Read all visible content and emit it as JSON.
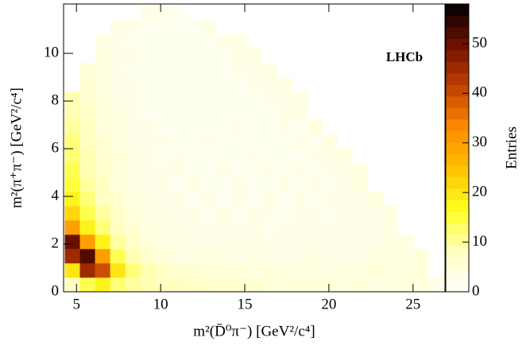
{
  "chart_data": {
    "type": "heatmap",
    "xlabel": "m²(D̄⁰π⁻) [GeV²/c⁴]",
    "ylabel": "m²(π⁺π⁻) [GeV²/c⁴]",
    "colorbar_label": "Entries",
    "annotation": "LHCb",
    "xlim": [
      4.23,
      26.9
    ],
    "ylim": [
      0,
      12.07
    ],
    "zlim": [
      0,
      58
    ],
    "xticks": [
      5,
      10,
      15,
      20,
      25
    ],
    "yticks": [
      0,
      2,
      4,
      6,
      8,
      10
    ],
    "zticks": [
      0,
      10,
      20,
      30,
      40,
      50
    ],
    "x_bins": [
      4.3,
      5.2,
      6.1,
      7.0,
      7.9,
      8.8,
      9.7,
      10.6,
      11.5,
      12.4,
      13.3,
      14.2,
      15.1,
      16.0,
      16.9,
      17.8,
      18.7,
      19.6,
      20.5,
      21.4,
      22.3,
      23.2,
      24.1,
      25.0,
      25.9,
      26.8
    ],
    "y_bins": [
      0,
      0.6,
      1.2,
      1.8,
      2.4,
      3.0,
      3.6,
      4.2,
      4.8,
      5.4,
      6.0,
      6.6,
      7.2,
      7.8,
      8.4,
      9.0,
      9.6,
      10.2,
      10.8,
      11.4,
      12.0
    ],
    "colormap": [
      "#ffffff",
      "#ffffc0",
      "#ffff20",
      "#ffc000",
      "#ff8a00",
      "#c04000",
      "#701000",
      "#000000"
    ],
    "values": [
      [
        8,
        14,
        18,
        12,
        10,
        9,
        8,
        8,
        7,
        7,
        6,
        6,
        6,
        5,
        5,
        5,
        5,
        5,
        4,
        5,
        4,
        4,
        5,
        4,
        3
      ],
      [
        20,
        45,
        40,
        20,
        12,
        9,
        7,
        6,
        6,
        5,
        5,
        5,
        4,
        5,
        4,
        4,
        4,
        4,
        4,
        4,
        5,
        4,
        4,
        5,
        null
      ],
      [
        45,
        52,
        30,
        14,
        9,
        6,
        5,
        4,
        4,
        4,
        4,
        3,
        4,
        3,
        3,
        3,
        4,
        3,
        3,
        3,
        4,
        4,
        4,
        5,
        null
      ],
      [
        50,
        30,
        18,
        10,
        7,
        5,
        4,
        4,
        3,
        3,
        3,
        3,
        3,
        3,
        3,
        3,
        3,
        3,
        3,
        3,
        3,
        4,
        4,
        null,
        null
      ],
      [
        30,
        18,
        12,
        8,
        6,
        4,
        4,
        3,
        3,
        3,
        3,
        3,
        3,
        2,
        3,
        3,
        3,
        3,
        3,
        3,
        3,
        4,
        null,
        null,
        null
      ],
      [
        22,
        14,
        10,
        7,
        5,
        4,
        3,
        3,
        3,
        2,
        3,
        2,
        3,
        3,
        2,
        3,
        3,
        2,
        3,
        3,
        3,
        4,
        null,
        null,
        null
      ],
      [
        18,
        12,
        8,
        6,
        4,
        4,
        3,
        3,
        2,
        3,
        2,
        3,
        2,
        3,
        2,
        3,
        2,
        3,
        3,
        3,
        4,
        null,
        null,
        null,
        null
      ],
      [
        15,
        10,
        8,
        5,
        4,
        3,
        3,
        2,
        3,
        2,
        2,
        3,
        2,
        2,
        3,
        2,
        3,
        2,
        3,
        4,
        null,
        null,
        null,
        null,
        null
      ],
      [
        14,
        9,
        7,
        5,
        4,
        3,
        3,
        3,
        2,
        2,
        3,
        2,
        2,
        3,
        2,
        3,
        2,
        3,
        3,
        4,
        null,
        null,
        null,
        null,
        null
      ],
      [
        12,
        9,
        6,
        5,
        4,
        3,
        2,
        3,
        2,
        2,
        2,
        2,
        3,
        2,
        2,
        2,
        3,
        3,
        4,
        null,
        null,
        null,
        null,
        null,
        null
      ],
      [
        12,
        8,
        6,
        4,
        3,
        3,
        3,
        2,
        2,
        3,
        2,
        2,
        2,
        2,
        2,
        3,
        2,
        4,
        null,
        null,
        null,
        null,
        null,
        null,
        null
      ],
      [
        10,
        8,
        5,
        4,
        3,
        3,
        2,
        2,
        2,
        2,
        2,
        3,
        2,
        2,
        3,
        2,
        4,
        null,
        null,
        null,
        null,
        null,
        null,
        null,
        null
      ],
      [
        9,
        7,
        5,
        4,
        3,
        2,
        2,
        2,
        2,
        2,
        2,
        2,
        2,
        2,
        3,
        3,
        null,
        null,
        null,
        null,
        null,
        null,
        null,
        null,
        null
      ],
      [
        9,
        6,
        5,
        3,
        3,
        2,
        2,
        2,
        2,
        2,
        2,
        2,
        2,
        3,
        3,
        4,
        null,
        null,
        null,
        null,
        null,
        null,
        null,
        null,
        null
      ],
      [
        null,
        6,
        4,
        3,
        3,
        2,
        2,
        2,
        2,
        2,
        2,
        2,
        3,
        3,
        4,
        null,
        null,
        null,
        null,
        null,
        null,
        null,
        null,
        null,
        null
      ],
      [
        null,
        5,
        4,
        3,
        2,
        2,
        2,
        2,
        2,
        2,
        2,
        3,
        3,
        4,
        null,
        null,
        null,
        null,
        null,
        null,
        null,
        null,
        null,
        null,
        null
      ],
      [
        null,
        null,
        4,
        3,
        3,
        2,
        2,
        2,
        2,
        2,
        2,
        3,
        4,
        null,
        null,
        null,
        null,
        null,
        null,
        null,
        null,
        null,
        null,
        null,
        null
      ],
      [
        null,
        null,
        3,
        3,
        2,
        2,
        2,
        2,
        2,
        2,
        3,
        4,
        null,
        null,
        null,
        null,
        null,
        null,
        null,
        null,
        null,
        null,
        null,
        null,
        null
      ],
      [
        null,
        null,
        null,
        3,
        3,
        2,
        2,
        2,
        2,
        3,
        null,
        null,
        null,
        null,
        null,
        null,
        null,
        null,
        null,
        null,
        null,
        null,
        null,
        null,
        null
      ],
      [
        null,
        null,
        null,
        null,
        null,
        3,
        3,
        2,
        null,
        null,
        null,
        null,
        null,
        null,
        null,
        null,
        null,
        null,
        null,
        null,
        null,
        null,
        null,
        null,
        null
      ]
    ]
  }
}
